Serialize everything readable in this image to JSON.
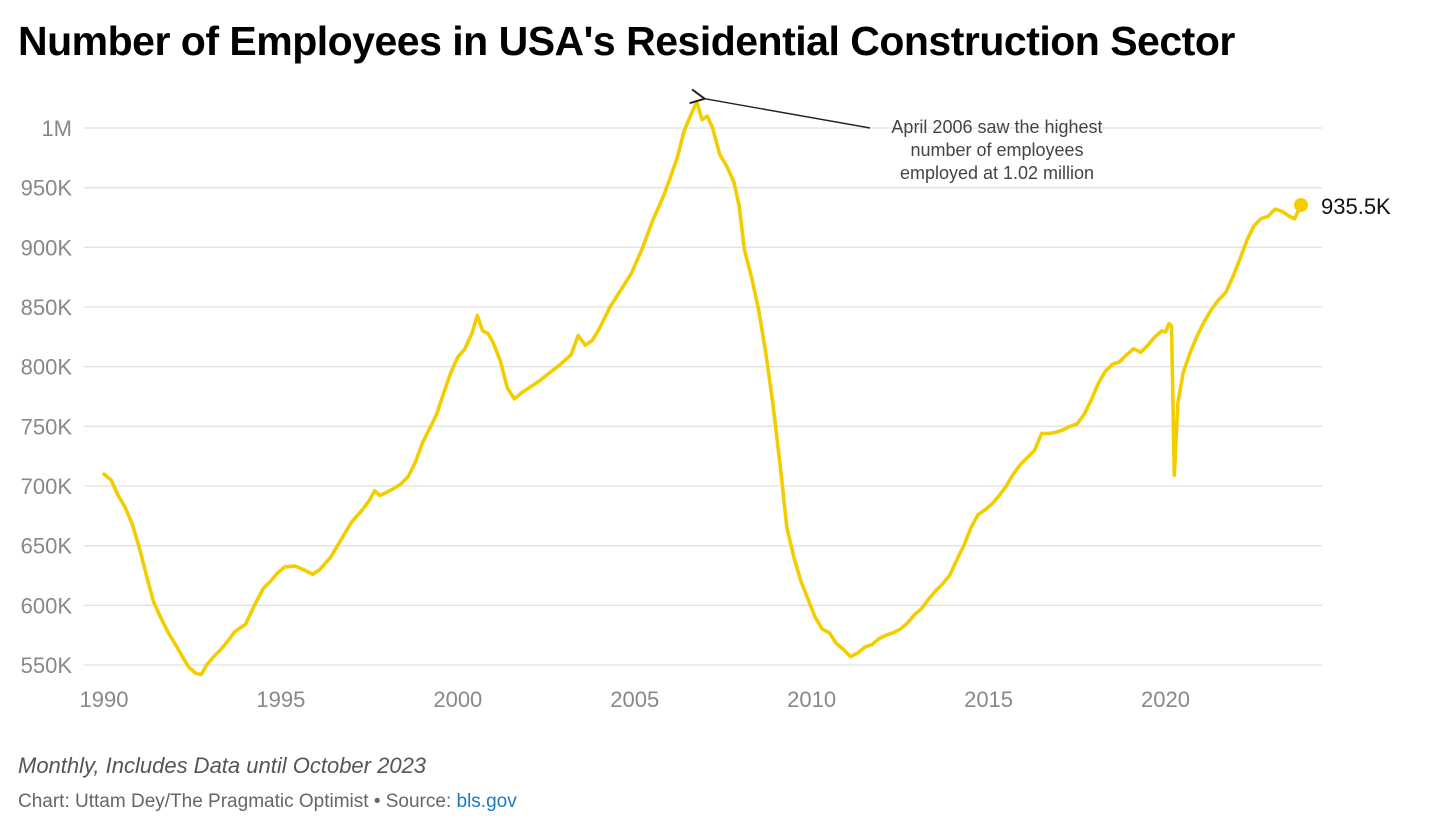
{
  "title": "Number of Employees in USA's Residential Construction Sector",
  "notes": "Monthly, Includes Data until October 2023",
  "credit": {
    "prefix": "Chart: Uttam Dey/The Pragmatic Optimist • Source: ",
    "source_link": "bls.gov"
  },
  "colors": {
    "line": "#f2ce00",
    "grid": "#e2e2e2",
    "tick_text": "#888888",
    "annotation_text": "#444444"
  },
  "chart_data": {
    "type": "line",
    "title": "Number of Employees in USA's Residential Construction Sector",
    "xlabel": "",
    "ylabel": "",
    "x_ticks": [
      {
        "value": 1990,
        "label": "1990"
      },
      {
        "value": 1995,
        "label": "1995"
      },
      {
        "value": 2000,
        "label": "2000"
      },
      {
        "value": 2005,
        "label": "2005"
      },
      {
        "value": 2010,
        "label": "2010"
      },
      {
        "value": 2015,
        "label": "2015"
      },
      {
        "value": 2020,
        "label": "2020"
      }
    ],
    "y_ticks": [
      {
        "value": 550000,
        "label": "550K"
      },
      {
        "value": 600000,
        "label": "600K"
      },
      {
        "value": 650000,
        "label": "650K"
      },
      {
        "value": 700000,
        "label": "700K"
      },
      {
        "value": 750000,
        "label": "750K"
      },
      {
        "value": 800000,
        "label": "800K"
      },
      {
        "value": 850000,
        "label": "850K"
      },
      {
        "value": 900000,
        "label": "900K"
      },
      {
        "value": 950000,
        "label": "950K"
      },
      {
        "value": 1000000,
        "label": "1M"
      }
    ],
    "xlim": [
      1990,
      2023.83
    ],
    "ylim": [
      540000,
      1030000
    ],
    "grid": true,
    "series": [
      {
        "points": [
          [
            1990.0,
            710000
          ],
          [
            1990.2,
            705000
          ],
          [
            1990.4,
            692000
          ],
          [
            1990.6,
            682000
          ],
          [
            1990.8,
            668000
          ],
          [
            1991.0,
            648000
          ],
          [
            1991.2,
            625000
          ],
          [
            1991.4,
            603000
          ],
          [
            1991.6,
            590000
          ],
          [
            1991.8,
            578000
          ],
          [
            1992.0,
            568000
          ],
          [
            1992.2,
            558000
          ],
          [
            1992.4,
            548000
          ],
          [
            1992.6,
            543000
          ],
          [
            1992.75,
            542000
          ],
          [
            1992.9,
            550000
          ],
          [
            1993.1,
            557000
          ],
          [
            1993.3,
            563000
          ],
          [
            1993.5,
            570000
          ],
          [
            1993.7,
            578000
          ],
          [
            1994.0,
            584000
          ],
          [
            1994.25,
            600000
          ],
          [
            1994.5,
            614000
          ],
          [
            1994.7,
            620000
          ],
          [
            1994.9,
            627000
          ],
          [
            1995.1,
            632000
          ],
          [
            1995.4,
            633000
          ],
          [
            1995.7,
            629000
          ],
          [
            1995.9,
            626000
          ],
          [
            1996.1,
            630000
          ],
          [
            1996.4,
            640000
          ],
          [
            1996.7,
            655000
          ],
          [
            1997.0,
            670000
          ],
          [
            1997.3,
            680000
          ],
          [
            1997.5,
            688000
          ],
          [
            1997.65,
            696000
          ],
          [
            1997.8,
            692000
          ],
          [
            1998.0,
            695000
          ],
          [
            1998.2,
            698000
          ],
          [
            1998.4,
            702000
          ],
          [
            1998.6,
            708000
          ],
          [
            1998.8,
            720000
          ],
          [
            1999.0,
            736000
          ],
          [
            1999.2,
            748000
          ],
          [
            1999.4,
            760000
          ],
          [
            1999.6,
            778000
          ],
          [
            1999.8,
            795000
          ],
          [
            2000.0,
            808000
          ],
          [
            2000.2,
            815000
          ],
          [
            2000.4,
            828000
          ],
          [
            2000.55,
            843000
          ],
          [
            2000.7,
            830000
          ],
          [
            2000.85,
            828000
          ],
          [
            2001.0,
            820000
          ],
          [
            2001.2,
            805000
          ],
          [
            2001.4,
            782000
          ],
          [
            2001.6,
            773000
          ],
          [
            2001.8,
            778000
          ],
          [
            2002.0,
            782000
          ],
          [
            2002.3,
            788000
          ],
          [
            2002.6,
            795000
          ],
          [
            2002.9,
            802000
          ],
          [
            2003.2,
            810000
          ],
          [
            2003.4,
            826000
          ],
          [
            2003.6,
            818000
          ],
          [
            2003.8,
            822000
          ],
          [
            2004.0,
            832000
          ],
          [
            2004.3,
            850000
          ],
          [
            2004.6,
            864000
          ],
          [
            2004.9,
            878000
          ],
          [
            2005.2,
            898000
          ],
          [
            2005.5,
            922000
          ],
          [
            2005.8,
            942000
          ],
          [
            2006.0,
            958000
          ],
          [
            2006.2,
            975000
          ],
          [
            2006.4,
            998000
          ],
          [
            2006.6,
            1012000
          ],
          [
            2006.75,
            1022000
          ],
          [
            2006.9,
            1007000
          ],
          [
            2007.05,
            1010000
          ],
          [
            2007.2,
            1000000
          ],
          [
            2007.4,
            978000
          ],
          [
            2007.6,
            968000
          ],
          [
            2007.8,
            955000
          ],
          [
            2007.95,
            935000
          ],
          [
            2008.1,
            898000
          ],
          [
            2008.3,
            875000
          ],
          [
            2008.5,
            848000
          ],
          [
            2008.7,
            812000
          ],
          [
            2008.9,
            770000
          ],
          [
            2009.1,
            720000
          ],
          [
            2009.3,
            665000
          ],
          [
            2009.5,
            640000
          ],
          [
            2009.7,
            620000
          ],
          [
            2009.9,
            605000
          ],
          [
            2010.1,
            590000
          ],
          [
            2010.3,
            580000
          ],
          [
            2010.5,
            577000
          ],
          [
            2010.7,
            568000
          ],
          [
            2010.9,
            563000
          ],
          [
            2011.1,
            557000
          ],
          [
            2011.3,
            560000
          ],
          [
            2011.5,
            565000
          ],
          [
            2011.7,
            567000
          ],
          [
            2011.9,
            572000
          ],
          [
            2012.1,
            575000
          ],
          [
            2012.3,
            577000
          ],
          [
            2012.5,
            580000
          ],
          [
            2012.7,
            585000
          ],
          [
            2012.9,
            592000
          ],
          [
            2013.1,
            597000
          ],
          [
            2013.3,
            605000
          ],
          [
            2013.5,
            612000
          ],
          [
            2013.7,
            618000
          ],
          [
            2013.9,
            625000
          ],
          [
            2014.1,
            638000
          ],
          [
            2014.3,
            650000
          ],
          [
            2014.5,
            665000
          ],
          [
            2014.7,
            676000
          ],
          [
            2014.9,
            680000
          ],
          [
            2015.1,
            685000
          ],
          [
            2015.3,
            692000
          ],
          [
            2015.5,
            700000
          ],
          [
            2015.7,
            710000
          ],
          [
            2015.9,
            718000
          ],
          [
            2016.1,
            724000
          ],
          [
            2016.3,
            730000
          ],
          [
            2016.5,
            744000
          ],
          [
            2016.7,
            744000
          ],
          [
            2016.9,
            745000
          ],
          [
            2017.1,
            747000
          ],
          [
            2017.3,
            750000
          ],
          [
            2017.5,
            752000
          ],
          [
            2017.7,
            760000
          ],
          [
            2017.9,
            772000
          ],
          [
            2018.1,
            786000
          ],
          [
            2018.3,
            796000
          ],
          [
            2018.5,
            802000
          ],
          [
            2018.7,
            804000
          ],
          [
            2018.9,
            810000
          ],
          [
            2019.1,
            815000
          ],
          [
            2019.3,
            812000
          ],
          [
            2019.5,
            818000
          ],
          [
            2019.7,
            825000
          ],
          [
            2019.9,
            830000
          ],
          [
            2020.0,
            829000
          ],
          [
            2020.1,
            836000
          ],
          [
            2020.17,
            834000
          ],
          [
            2020.25,
            709000
          ],
          [
            2020.35,
            770000
          ],
          [
            2020.5,
            795000
          ],
          [
            2020.7,
            812000
          ],
          [
            2020.9,
            826000
          ],
          [
            2021.1,
            838000
          ],
          [
            2021.3,
            848000
          ],
          [
            2021.5,
            856000
          ],
          [
            2021.7,
            862000
          ],
          [
            2021.9,
            875000
          ],
          [
            2022.1,
            890000
          ],
          [
            2022.3,
            906000
          ],
          [
            2022.5,
            918000
          ],
          [
            2022.7,
            924000
          ],
          [
            2022.9,
            926000
          ],
          [
            2023.1,
            932000
          ],
          [
            2023.3,
            930000
          ],
          [
            2023.5,
            926000
          ],
          [
            2023.65,
            924000
          ],
          [
            2023.83,
            935500
          ]
        ]
      }
    ],
    "end_point": {
      "x": 2023.83,
      "y": 935500,
      "label": "935.5K"
    },
    "annotation": {
      "lines": [
        "April 2006 saw the highest",
        "number of employees",
        "employed at 1.02 million"
      ],
      "target": {
        "x": 2006.75,
        "y": 1022000
      }
    }
  }
}
